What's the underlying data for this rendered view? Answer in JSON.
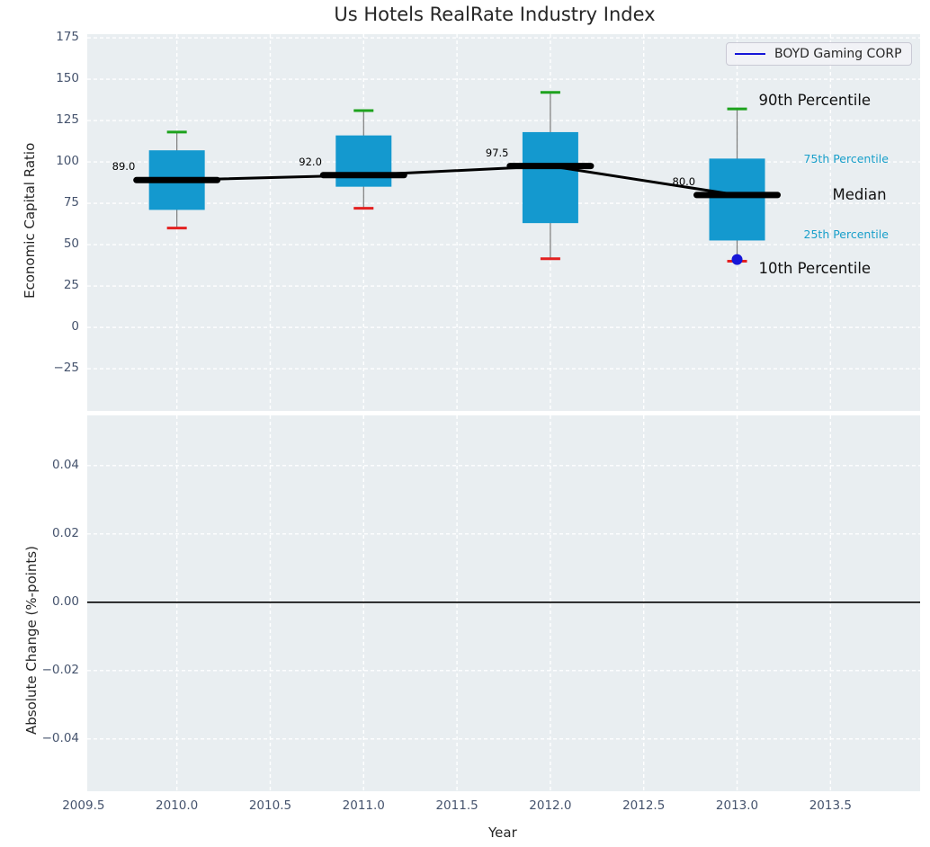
{
  "title": "Us Hotels RealRate Industry Index",
  "legend": {
    "label": "BOYD Gaming CORP",
    "line_color": "#1616d8"
  },
  "percentile_labels": {
    "p90": "90th Percentile",
    "p75": "75th Percentile",
    "median": "Median",
    "p25": "25th Percentile",
    "p10": "10th Percentile"
  },
  "colors": {
    "box_fill": "#1499cf",
    "cap_high_green": "#1da21d",
    "cap_low_red": "#e32020",
    "median_line": "#000000",
    "whisker_gray": "#7a7a7a",
    "company_blue": "#1616d8",
    "annotation_cyan": "#189fca",
    "plot_background": "#e9eef1",
    "tick_text": "#45536d"
  },
  "chart_data": [
    {
      "type": "bar",
      "subtype": "boxplot-timeseries",
      "title": "Us Hotels RealRate Industry Index",
      "xlabel": "Year",
      "ylabel": "Economic Capital Ratio",
      "x": [
        2010,
        2011,
        2012,
        2013
      ],
      "series": [
        {
          "name": "90th Percentile",
          "values": [
            118,
            131,
            142,
            132
          ]
        },
        {
          "name": "75th Percentile",
          "values": [
            107,
            116,
            118,
            102
          ]
        },
        {
          "name": "Median",
          "values": [
            89,
            92,
            97.5,
            80
          ]
        },
        {
          "name": "25th Percentile",
          "values": [
            71,
            85,
            63,
            52.5
          ]
        },
        {
          "name": "10th Percentile",
          "values": [
            60,
            72,
            41.5,
            40
          ]
        }
      ],
      "median_labels": [
        "89.0",
        "92.0",
        "97.5",
        "80.0"
      ],
      "company_series": {
        "name": "BOYD Gaming CORP",
        "points": [
          {
            "x": 2013,
            "y": 41
          }
        ]
      },
      "xlim": [
        2009.52,
        2013.98
      ],
      "ylim": [
        -50.5,
        177.2
      ],
      "yticks": [
        {
          "v": 175,
          "label": "175"
        },
        {
          "v": 150,
          "label": "150"
        },
        {
          "v": 125,
          "label": "125"
        },
        {
          "v": 100,
          "label": "100"
        },
        {
          "v": 75,
          "label": "75"
        },
        {
          "v": 50,
          "label": "50"
        },
        {
          "v": 25,
          "label": "25"
        },
        {
          "v": 0,
          "label": "0"
        },
        {
          "v": -25,
          "label": "−25"
        }
      ],
      "xticks": [
        {
          "v": 2009.5,
          "label": "2009.5"
        },
        {
          "v": 2010.0,
          "label": "2010.0"
        },
        {
          "v": 2010.5,
          "label": "2010.5"
        },
        {
          "v": 2011.0,
          "label": "2011.0"
        },
        {
          "v": 2011.5,
          "label": "2011.5"
        },
        {
          "v": 2012.0,
          "label": "2012.0"
        },
        {
          "v": 2012.5,
          "label": "2012.5"
        },
        {
          "v": 2013.0,
          "label": "2013.0"
        },
        {
          "v": 2013.5,
          "label": "2013.5"
        }
      ],
      "grid": true,
      "legend_position": "upper right"
    },
    {
      "type": "line",
      "subtype": "zero-reference",
      "ylabel": "Absolute Change (%-points)",
      "x": [],
      "values": [],
      "zero_line": 0.0,
      "ylim": [
        -0.0553,
        0.0547
      ],
      "yticks": [
        {
          "v": 0.04,
          "label": "0.04"
        },
        {
          "v": 0.02,
          "label": "0.02"
        },
        {
          "v": 0.0,
          "label": "0.00"
        },
        {
          "v": -0.02,
          "label": "−0.02"
        },
        {
          "v": -0.04,
          "label": "−0.04"
        }
      ],
      "grid": true
    }
  ]
}
